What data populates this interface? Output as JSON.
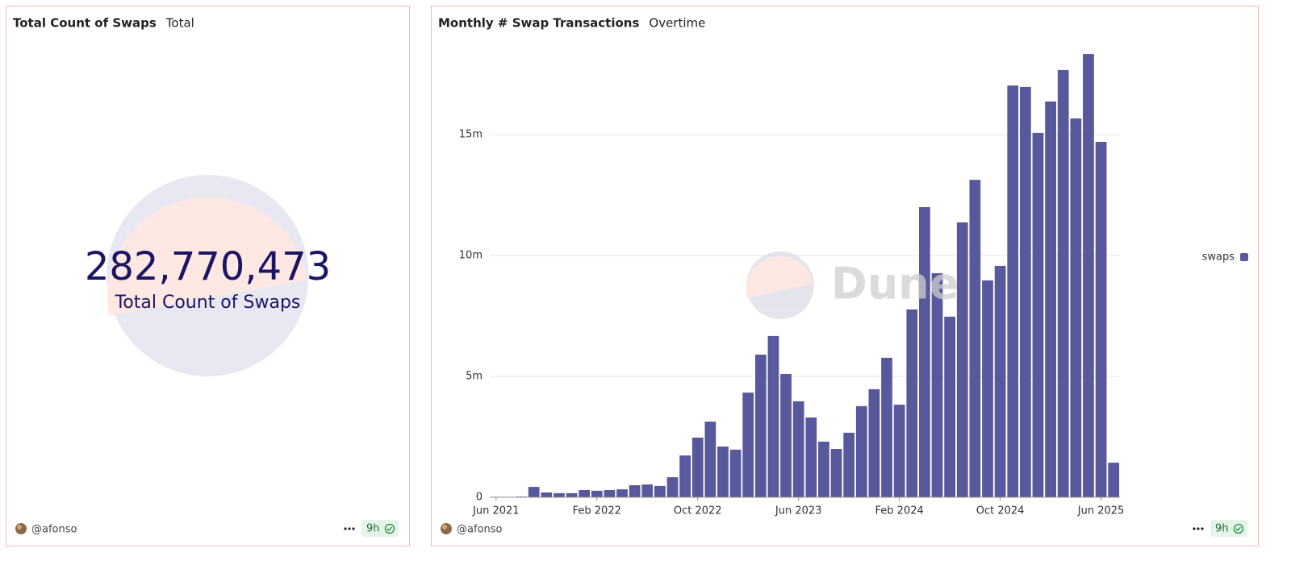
{
  "chart_data": [
    {
      "type": "counter",
      "title": "Total Count of Swaps",
      "subtitle": "Total",
      "values": [
        282770473
      ],
      "value_labels": [
        "282,770,473"
      ],
      "label": "Total Count of Swaps",
      "color": "#1c1566",
      "author": "@afonso",
      "age": "9h"
    },
    {
      "type": "bar",
      "title": "Monthly # Swap Transactions",
      "subtitle": "Overtime",
      "categories": [
        "Jun 2021",
        null,
        null,
        null,
        null,
        null,
        null,
        null,
        "Feb 2022",
        null,
        null,
        null,
        null,
        null,
        null,
        null,
        "Oct 2022",
        null,
        null,
        null,
        null,
        null,
        null,
        null,
        "Jun 2023",
        null,
        null,
        null,
        null,
        null,
        null,
        null,
        "Feb 2024",
        null,
        null,
        null,
        null,
        null,
        null,
        null,
        "Oct 2024",
        null,
        null,
        null,
        null,
        null,
        null,
        null,
        "Jun 2025",
        null
      ],
      "series": [
        {
          "name": "swaps",
          "color": "#58589c",
          "values": [
            20000,
            20000,
            30000,
            430000,
            200000,
            170000,
            170000,
            300000,
            270000,
            300000,
            330000,
            500000,
            530000,
            470000,
            830000,
            1730000,
            2470000,
            3130000,
            2100000,
            1970000,
            4330000,
            5900000,
            6670000,
            5100000,
            3970000,
            3300000,
            2300000,
            2000000,
            2670000,
            3770000,
            4470000,
            5770000,
            3830000,
            7770000,
            12000000,
            9270000,
            7470000,
            11370000,
            13130000,
            8970000,
            9570000,
            17030000,
            16970000,
            15070000,
            16370000,
            17670000,
            15670000,
            18330000,
            14700000,
            1430000
          ]
        }
      ],
      "ylim": [
        0,
        18500000
      ],
      "yticks": [
        0,
        {
          "value": 5000000,
          "label": "5m"
        },
        {
          "value": 10000000,
          "label": "10m"
        },
        {
          "value": 15000000,
          "label": "15m"
        }
      ],
      "grid": true,
      "legend": "right",
      "watermark": "Dune",
      "author": "@afonso",
      "age": "9h"
    }
  ]
}
